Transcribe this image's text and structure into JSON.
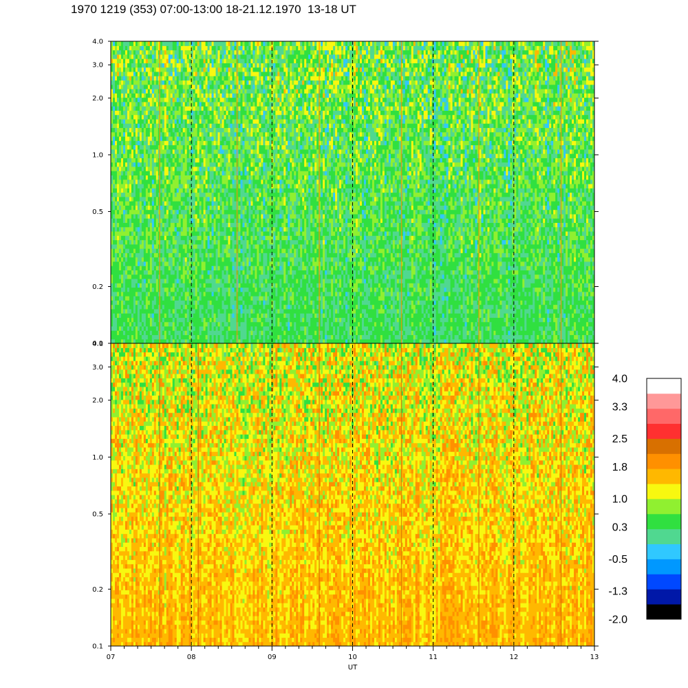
{
  "title": "1970 1219 (353) 07:00-13:00 18-21.12.1970  13-18 UT",
  "chart_data": {
    "type": "heatmap",
    "title": "1970 1219 (353) 07:00-13:00 18-21.12.1970  13-18 UT",
    "xlabel": "UT",
    "x_ticks": [
      "07",
      "08",
      "09",
      "10",
      "11",
      "12",
      "13"
    ],
    "xlim": [
      7,
      13
    ],
    "y_scale": "log",
    "ylim": [
      0.1,
      4.0
    ],
    "y_ticks": [
      "0.1",
      "0.2",
      "0.5",
      "1.0",
      "2.0",
      "3.0",
      "4.0"
    ],
    "grid": "dashed vertical lines at each hour",
    "panels": [
      {
        "name": "",
        "y_ticks": [
          "0.1",
          "0.2",
          "0.5",
          "1.0",
          "2.0",
          "3.0",
          "4.0"
        ],
        "dominant_level_low_freq": 0.3,
        "dominant_level_high_freq": 0.6
      },
      {
        "name": "",
        "y_ticks": [
          "0.1",
          "0.2",
          "0.5",
          "1.0",
          "2.0",
          "3.0",
          "4.0"
        ],
        "dominant_level_low_freq": 1.6,
        "dominant_level_high_freq": 1.1
      }
    ],
    "colorbar": {
      "tick_labels": [
        "4.0",
        "3.3",
        "2.5",
        "1.8",
        "1.0",
        "0.3",
        "-0.5",
        "-1.3",
        "-2.0"
      ],
      "range": [
        -2.0,
        4.0
      ],
      "colors": [
        "#000000",
        "#0018a8",
        "#0048ff",
        "#0098ff",
        "#30c8ff",
        "#50d890",
        "#30e040",
        "#90f030",
        "#f8f810",
        "#ffb800",
        "#ff9000",
        "#d87000",
        "#ff3030",
        "#ff6868",
        "#ff9898",
        "#ffffff"
      ]
    }
  }
}
